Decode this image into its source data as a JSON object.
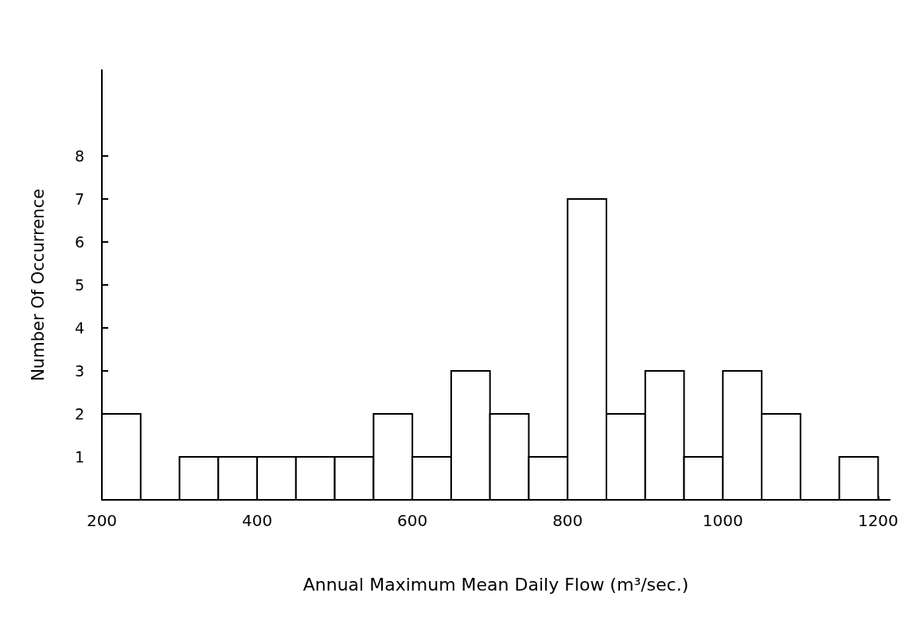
{
  "chart_data": {
    "type": "histogram",
    "xlabel": "Annual Maximum Mean Daily Flow (m³/sec.)",
    "ylabel": "Number Of Occurrence",
    "bins": [
      200,
      250,
      300,
      350,
      400,
      450,
      500,
      550,
      600,
      650,
      700,
      750,
      800,
      850,
      900,
      950,
      1000,
      1050,
      1100,
      1150,
      1200
    ],
    "values": [
      2,
      0,
      1,
      1,
      1,
      1,
      1,
      2,
      1,
      3,
      2,
      1,
      7,
      2,
      3,
      1,
      3,
      2,
      0,
      1
    ],
    "color": "#000000",
    "xlim": [
      200,
      1215
    ],
    "xticks": [
      200,
      400,
      600,
      800,
      1000,
      1200
    ],
    "ylim": [
      0,
      10
    ],
    "yticks": [
      1,
      2,
      3,
      4,
      5,
      6,
      7,
      8
    ],
    "grid": false
  }
}
